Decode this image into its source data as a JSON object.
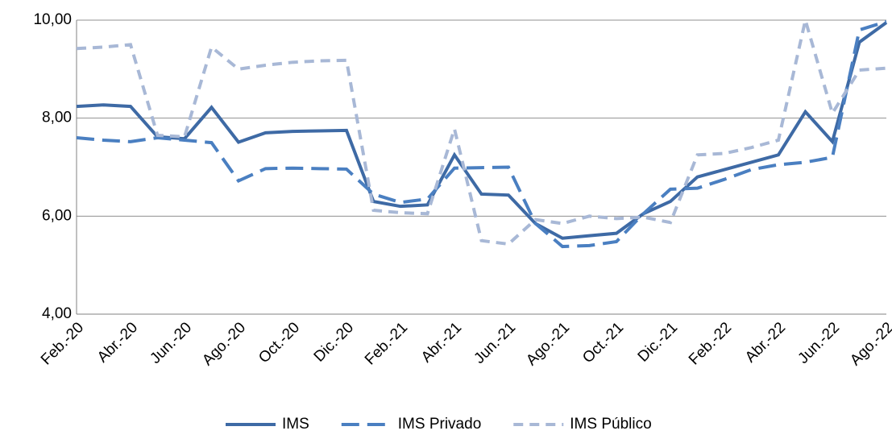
{
  "chart_data": {
    "type": "line",
    "categories": [
      "Feb.-20",
      null,
      "Abr.-20",
      null,
      "Jun.-20",
      null,
      "Ago.-20",
      null,
      "Oct.-20",
      null,
      "Dic.-20",
      null,
      "Feb.-21",
      null,
      "Abr.-21",
      null,
      "Jun.-21",
      null,
      "Ago.-21",
      null,
      "Oct.-21",
      null,
      "Dic.-21",
      null,
      "Feb.-22",
      null,
      "Abr.-22",
      null,
      "Jun.-22",
      null,
      "Ago.-22"
    ],
    "series": [
      {
        "name": "IMS",
        "color": "#3e6aa5",
        "dash": "solid",
        "values": [
          8.24,
          8.27,
          8.24,
          7.62,
          7.58,
          8.22,
          7.51,
          7.7,
          7.73,
          7.74,
          7.75,
          6.3,
          6.2,
          6.23,
          7.25,
          6.45,
          6.43,
          5.85,
          5.55,
          5.6,
          5.65,
          6.05,
          6.3,
          6.8,
          6.95,
          7.1,
          7.25,
          8.13,
          7.52,
          9.55,
          9.95
        ]
      },
      {
        "name": "IMS Privado",
        "color": "#4a7fc1",
        "dash": "long",
        "values": [
          7.6,
          7.55,
          7.52,
          7.6,
          7.55,
          7.5,
          6.72,
          6.97,
          6.98,
          6.97,
          6.96,
          6.45,
          6.28,
          6.35,
          6.98,
          6.99,
          7.0,
          5.85,
          5.38,
          5.4,
          5.48,
          6.05,
          6.55,
          6.57,
          6.75,
          6.95,
          7.05,
          7.1,
          7.2,
          9.8,
          9.97
        ]
      },
      {
        "name": "IMS Público",
        "color": "#a8b8d6",
        "dash": "short",
        "values": [
          9.42,
          9.45,
          9.5,
          7.65,
          7.62,
          9.45,
          9.0,
          9.08,
          9.14,
          9.17,
          9.18,
          6.12,
          6.07,
          6.05,
          7.78,
          5.5,
          5.43,
          5.93,
          5.85,
          6.0,
          5.95,
          5.98,
          5.87,
          7.25,
          7.28,
          7.4,
          7.55,
          10.0,
          8.1,
          8.98,
          9.02
        ]
      }
    ],
    "ylim": [
      4,
      10
    ],
    "yticks": [
      {
        "value": 4,
        "label": "4,00"
      },
      {
        "value": 6,
        "label": "6,00"
      },
      {
        "value": 8,
        "label": "8,00"
      },
      {
        "value": 10,
        "label": "10,00"
      }
    ],
    "grid": true,
    "legend": "bottom"
  }
}
